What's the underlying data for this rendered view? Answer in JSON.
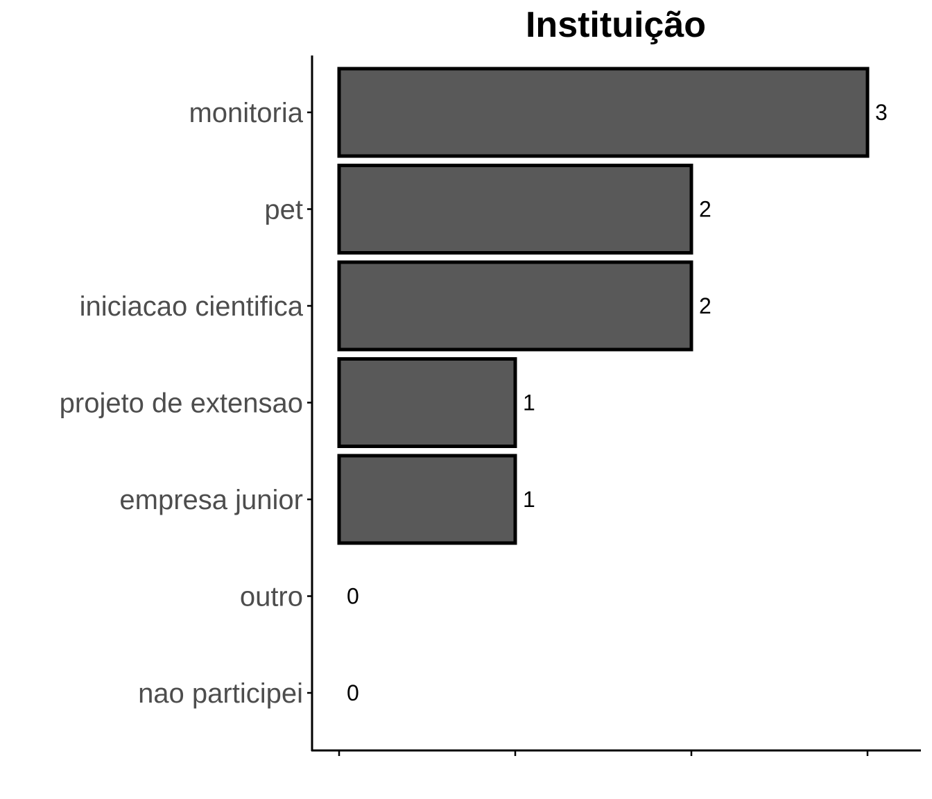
{
  "chart_data": {
    "type": "bar",
    "orientation": "horizontal",
    "title": "Instituição",
    "xlabel": "",
    "ylabel": "",
    "categories": [
      "monitoria",
      "pet",
      "iniciacao cientifica",
      "projeto de extensao",
      "empresa junior",
      "outro",
      "nao participei"
    ],
    "values": [
      3,
      2,
      2,
      1,
      1,
      0,
      0
    ],
    "xlim": [
      0,
      3
    ],
    "x_ticks": [
      0,
      1,
      2,
      3
    ],
    "x_tick_labels_shown": false,
    "grid": false,
    "legend": "none",
    "bar_color": "#595959",
    "bar_border_color": "#000000"
  }
}
